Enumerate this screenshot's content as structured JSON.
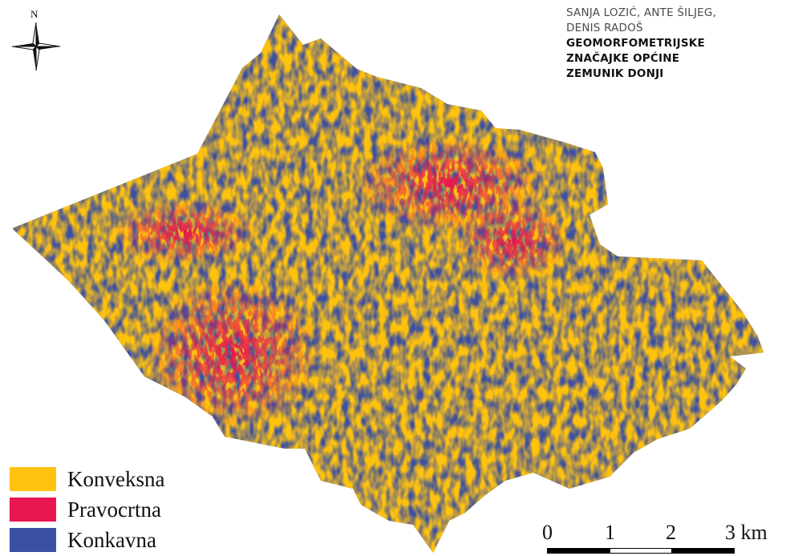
{
  "header": {
    "authors_line1": "SANJA LOZIĆ, ANTE ŠILJEG,",
    "authors_line2": "DENIS RADOŠ",
    "title_line1": "GEOMORFOMETRIJSKE",
    "title_line2": "ZNAČAJKE OPĆINE",
    "title_line3": "ZEMUNIK DONJI"
  },
  "north_arrow": {
    "label": "N",
    "icon": "north-arrow-icon"
  },
  "legend": [
    {
      "label": "Konveksna",
      "color": "#FFC20E"
    },
    {
      "label": "Pravocrtna",
      "color": "#E8174F"
    },
    {
      "label": "Konkavna",
      "color": "#3C50A3"
    }
  ],
  "scale_bar": {
    "labels": [
      "0",
      "1",
      "2",
      "3 km"
    ]
  }
}
